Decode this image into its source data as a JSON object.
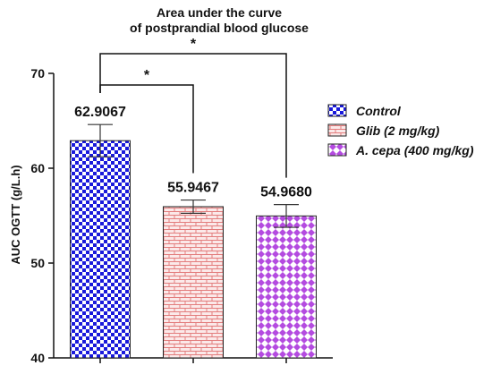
{
  "chart_data": {
    "type": "bar",
    "title_lines": [
      "Area under the curve",
      "of postprandial blood glucose"
    ],
    "ylabel": "AUC OGTT (g/L.h)",
    "xlabel": "",
    "ylim": [
      40,
      70
    ],
    "yticks": [
      40,
      50,
      60,
      70
    ],
    "grid": false,
    "legend_position": "right",
    "categories": [
      "Control",
      "Glib (2 mg/kg)",
      "A. cepa (400 mg/kg)"
    ],
    "values": [
      62.9067,
      55.9467,
      54.968
    ],
    "value_labels": [
      "62.9067",
      "55.9467",
      "54.9680"
    ],
    "errors": [
      1.7,
      0.7,
      1.2
    ],
    "colors": [
      "#1a1adb",
      "#e37d7d",
      "#b44be0"
    ],
    "patterns": [
      "checkerboard",
      "brick",
      "diamond"
    ],
    "significance": [
      {
        "from": 0,
        "to": 1,
        "label": "*"
      },
      {
        "from": 0,
        "to": 2,
        "label": "*"
      }
    ]
  }
}
